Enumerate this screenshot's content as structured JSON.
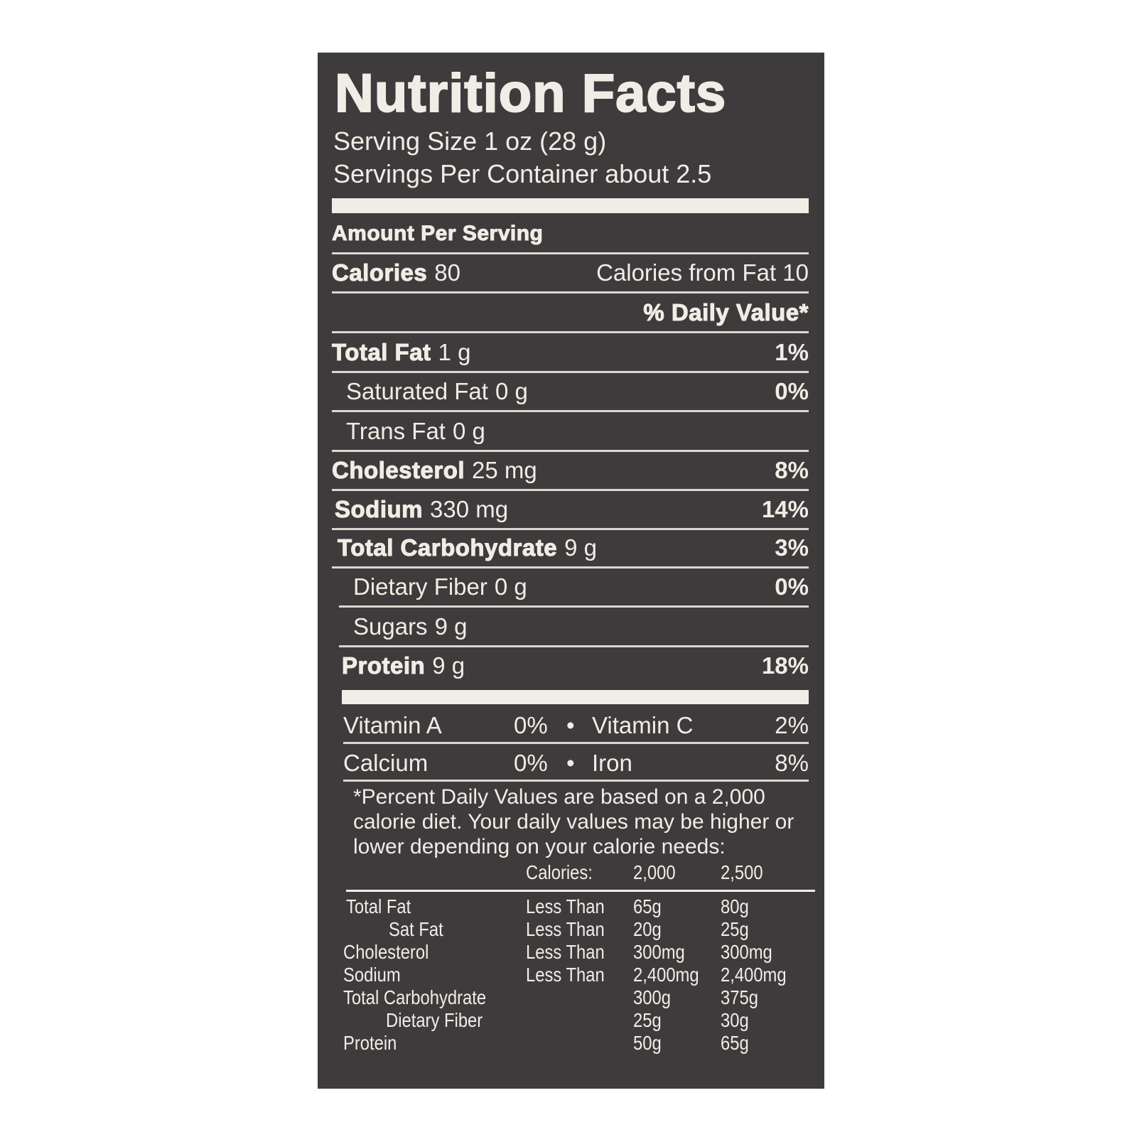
{
  "title": "Nutrition Facts",
  "serving_size": "Serving Size 1 oz (28 g)",
  "servings_per_container": "Servings Per Container about 2.5",
  "amount_per_serving": "Amount Per Serving",
  "calories": {
    "label": "Calories",
    "value": "80",
    "from_fat": "Calories from Fat 10"
  },
  "daily_value_header": "% Daily Value*",
  "nutrients": [
    {
      "label": "Total Fat",
      "amount": "1 g",
      "dv": "1%"
    },
    {
      "label": "Saturated Fat",
      "amount": "0 g",
      "dv": "0%"
    },
    {
      "label": "Trans Fat",
      "amount": "0 g",
      "dv": ""
    },
    {
      "label": "Cholesterol",
      "amount": "25 mg",
      "dv": "8%"
    },
    {
      "label": "Sodium",
      "amount": "330 mg",
      "dv": "14%"
    },
    {
      "label": "Total Carbohydrate",
      "amount": "9 g",
      "dv": "3%"
    },
    {
      "label": "Dietary Fiber",
      "amount": "0 g",
      "dv": "0%"
    },
    {
      "label": "Sugars",
      "amount": "9 g",
      "dv": ""
    },
    {
      "label": "Protein",
      "amount": "9 g",
      "dv": "18%"
    }
  ],
  "vitamins": [
    [
      {
        "label": "Vitamin A",
        "dv": "0%"
      },
      {
        "label": "Vitamin C",
        "dv": "2%"
      }
    ],
    [
      {
        "label": "Calcium",
        "dv": "0%"
      },
      {
        "label": "Iron",
        "dv": "8%"
      }
    ]
  ],
  "bullet": "•",
  "footnote": "*Percent Daily Values are based on a 2,000 calorie diet. Your daily values may be higher or lower depending on your calorie needs:",
  "reference_table": {
    "headers": [
      "Calories:",
      "2,000",
      "2,500"
    ],
    "rows": [
      [
        "Total Fat",
        "Less Than",
        "65g",
        "80g"
      ],
      [
        "Sat Fat",
        "Less Than",
        "20g",
        "25g"
      ],
      [
        "Cholesterol",
        "Less Than",
        "300mg",
        "300mg"
      ],
      [
        "Sodium",
        "Less Than",
        "2,400mg",
        "2,400mg"
      ],
      [
        "Total Carbohydrate",
        "",
        "300g",
        "375g"
      ],
      [
        "Dietary Fiber",
        "",
        "25g",
        "30g"
      ],
      [
        "Protein",
        "",
        "50g",
        "65g"
      ]
    ]
  },
  "colors": {
    "panel": "#3e3b3c",
    "text": "#efeee6"
  }
}
